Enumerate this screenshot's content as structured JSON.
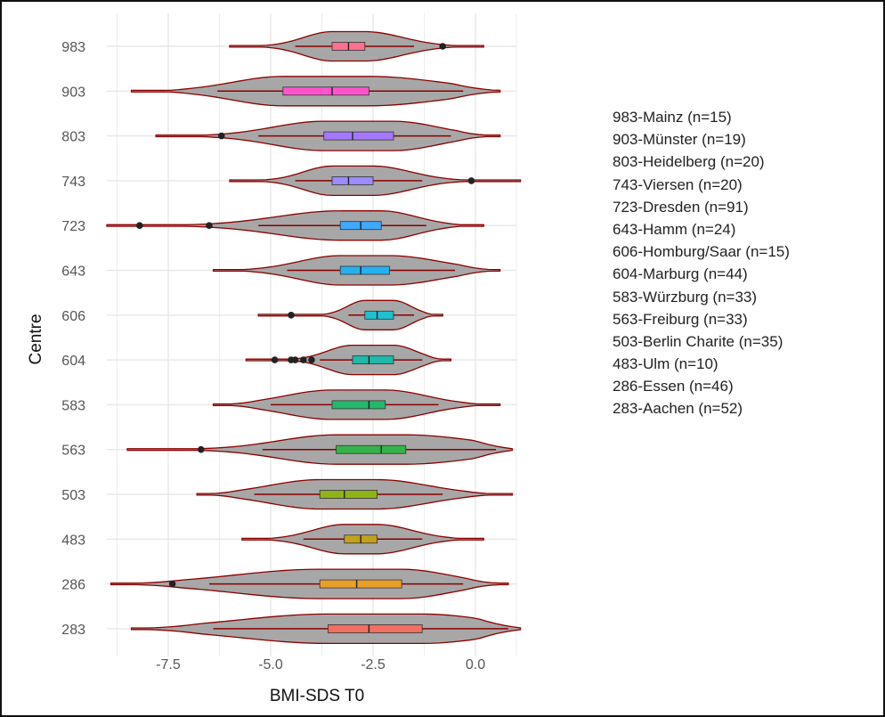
{
  "chart_data": {
    "type": "violin",
    "xlabel": "BMI-SDS T0",
    "ylabel": "Centre",
    "xlim": [
      -9.0,
      1.0
    ],
    "x_ticks": [
      "-7.5",
      "-5.0",
      "-2.5",
      "0.0"
    ],
    "x_tick_values": [
      -7.5,
      -5.0,
      -2.5,
      0.0
    ],
    "categories": [
      "983",
      "903",
      "803",
      "743",
      "723",
      "643",
      "606",
      "604",
      "583",
      "563",
      "503",
      "483",
      "286",
      "283"
    ],
    "grid": true,
    "legend_position": "right",
    "series": [
      {
        "centre": "983",
        "legend": "983-Mainz (n=15)",
        "color": "#ff6f91",
        "min": -6.0,
        "max": 0.2,
        "q1": -3.5,
        "median": -3.1,
        "q3": -2.7,
        "whisker_low": -4.4,
        "whisker_high": -1.5,
        "outliers": [
          -0.8
        ]
      },
      {
        "centre": "903",
        "legend": "903-Münster (n=19)",
        "color": "#ff55cc",
        "min": -8.4,
        "max": 0.6,
        "q1": -4.7,
        "median": -3.5,
        "q3": -2.6,
        "whisker_low": -6.3,
        "whisker_high": -0.3,
        "outliers": []
      },
      {
        "centre": "803",
        "legend": "803-Heidelberg (n=20)",
        "color": "#a678ff",
        "min": -7.8,
        "max": 0.6,
        "q1": -3.7,
        "median": -3.0,
        "q3": -2.0,
        "whisker_low": -5.3,
        "whisker_high": -0.6,
        "outliers": [
          -6.2
        ]
      },
      {
        "centre": "743",
        "legend": "743-Viersen (n=20)",
        "color": "#9b8cff",
        "min": -6.0,
        "max": 1.1,
        "q1": -3.5,
        "median": -3.1,
        "q3": -2.5,
        "whisker_low": -4.4,
        "whisker_high": -1.3,
        "outliers": [
          -0.1
        ]
      },
      {
        "centre": "723",
        "legend": "723-Dresden (n=91)",
        "color": "#3fa8ff",
        "min": -9.0,
        "max": 0.2,
        "q1": -3.3,
        "median": -2.8,
        "q3": -2.3,
        "whisker_low": -5.3,
        "whisker_high": -1.2,
        "outliers": [
          -8.2,
          -6.5
        ]
      },
      {
        "centre": "643",
        "legend": "643-Hamm (n=24)",
        "color": "#26b0f0",
        "min": -6.4,
        "max": 0.6,
        "q1": -3.3,
        "median": -2.8,
        "q3": -2.1,
        "whisker_low": -4.6,
        "whisker_high": -0.5,
        "outliers": []
      },
      {
        "centre": "606",
        "legend": "606-Homburg/Saar (n=15)",
        "color": "#1fc0d0",
        "min": -5.3,
        "max": -0.8,
        "q1": -2.7,
        "median": -2.4,
        "q3": -2.0,
        "whisker_low": -3.1,
        "whisker_high": -1.5,
        "outliers": [
          -4.5
        ]
      },
      {
        "centre": "604",
        "legend": "604-Marburg (n=44)",
        "color": "#20b8a8",
        "min": -5.6,
        "max": -0.6,
        "q1": -3.0,
        "median": -2.6,
        "q3": -2.0,
        "whisker_low": -3.8,
        "whisker_high": -1.3,
        "outliers": [
          -4.9,
          -4.5,
          -4.4,
          -4.2,
          -4.0
        ]
      },
      {
        "centre": "583",
        "legend": "583-Würzburg (n=33)",
        "color": "#24b86a",
        "min": -6.4,
        "max": 0.6,
        "q1": -3.5,
        "median": -2.6,
        "q3": -2.2,
        "whisker_low": -5.0,
        "whisker_high": -0.9,
        "outliers": []
      },
      {
        "centre": "563",
        "legend": "563-Freiburg (n=33)",
        "color": "#34b34a",
        "min": -8.5,
        "max": 0.9,
        "q1": -3.4,
        "median": -2.3,
        "q3": -1.7,
        "whisker_low": -5.2,
        "whisker_high": 0.5,
        "outliers": [
          -6.7
        ]
      },
      {
        "centre": "503",
        "legend": "503-Berlin Charite (n=35)",
        "color": "#8fb316",
        "min": -6.8,
        "max": 0.9,
        "q1": -3.8,
        "median": -3.2,
        "q3": -2.4,
        "whisker_low": -5.4,
        "whisker_high": -0.8,
        "outliers": []
      },
      {
        "centre": "483",
        "legend": "483-Ulm (n=10)",
        "color": "#c2a11f",
        "min": -5.7,
        "max": 0.2,
        "q1": -3.2,
        "median": -2.8,
        "q3": -2.4,
        "whisker_low": -4.2,
        "whisker_high": -1.3,
        "outliers": []
      },
      {
        "centre": "286",
        "legend": "286-Essen (n=46)",
        "color": "#e8a02a",
        "min": -8.9,
        "max": 0.8,
        "q1": -3.8,
        "median": -2.9,
        "q3": -1.8,
        "whisker_low": -6.5,
        "whisker_high": -0.3,
        "outliers": [
          -7.4
        ]
      },
      {
        "centre": "283",
        "legend": "283-Aachen (n=52)",
        "color": "#f26f61",
        "min": -8.4,
        "max": 1.1,
        "q1": -3.6,
        "median": -2.6,
        "q3": -1.3,
        "whisker_low": -6.4,
        "whisker_high": 0.8,
        "outliers": []
      }
    ]
  },
  "colors": {
    "violin_fill": "#a7a7a7",
    "violin_stroke": "#8b0000",
    "grid": "#e7e7e7",
    "outlier": "#222222"
  }
}
